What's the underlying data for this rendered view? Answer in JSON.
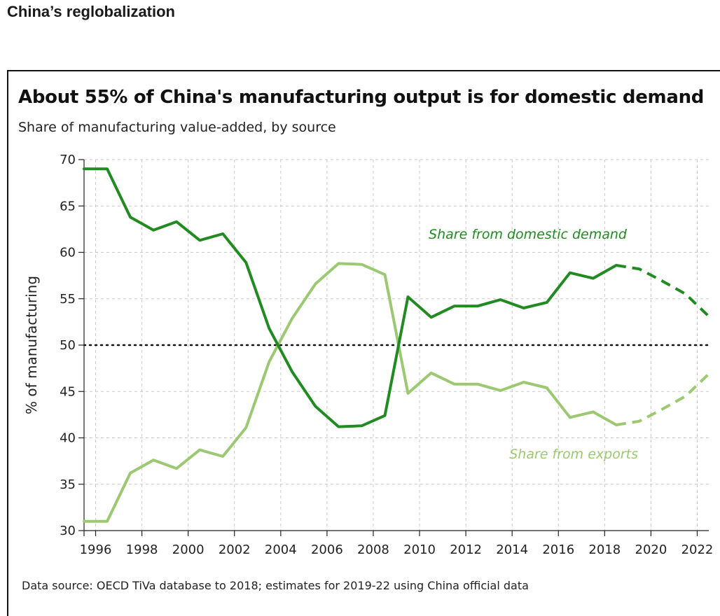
{
  "page": {
    "heading": "China’s reglobalization"
  },
  "chart_data": {
    "type": "line",
    "title": "About 55% of China's manufacturing output is for domestic demand",
    "subtitle": "Share of manufacturing value-added, by source",
    "ylabel": "% of manufacturing",
    "xlabel": "",
    "source": "Data source: OECD TiVa database to 2018; estimates for 2019-22 using China official data",
    "ylim": [
      30,
      70
    ],
    "yticks": [
      30,
      35,
      40,
      45,
      50,
      55,
      60,
      65,
      70
    ],
    "xlim": [
      1995.5,
      2022.5
    ],
    "xticks": [
      1996,
      1998,
      2000,
      2002,
      2004,
      2006,
      2008,
      2010,
      2012,
      2014,
      2016,
      2018,
      2020,
      2022
    ],
    "grid": true,
    "reference_line": {
      "value": 50,
      "style": "dotted"
    },
    "series": [
      {
        "name": "Share from domestic demand",
        "color": "#218a21",
        "actual": {
          "x": [
            1995.5,
            1996.5,
            1997.5,
            1998.5,
            1999.5,
            2000.5,
            2001.5,
            2002.5,
            2003.5,
            2004.5,
            2005.5,
            2006.5,
            2007.5,
            2008.5,
            2009.5,
            2010.5,
            2011.5,
            2012.5,
            2013.5,
            2014.5,
            2015.5,
            2016.5,
            2017.5,
            2018.5
          ],
          "y": [
            69.0,
            69.0,
            63.8,
            62.4,
            63.3,
            61.3,
            62.0,
            58.9,
            51.8,
            47.1,
            43.4,
            41.2,
            41.3,
            42.4,
            55.2,
            53.0,
            54.2,
            54.2,
            54.9,
            54.0,
            54.6,
            57.8,
            57.2,
            58.6
          ]
        },
        "estimate": {
          "x": [
            2018.5,
            2019.5,
            2020.5,
            2021.5,
            2022.5
          ],
          "y": [
            58.6,
            58.2,
            56.9,
            55.5,
            53.1
          ]
        }
      },
      {
        "name": "Share from exports",
        "color": "#9cc872",
        "actual": {
          "x": [
            1995.5,
            1996.5,
            1997.5,
            1998.5,
            1999.5,
            2000.5,
            2001.5,
            2002.5,
            2003.5,
            2004.5,
            2005.5,
            2006.5,
            2007.5,
            2008.5,
            2009.5,
            2010.5,
            2011.5,
            2012.5,
            2013.5,
            2014.5,
            2015.5,
            2016.5,
            2017.5,
            2018.5
          ],
          "y": [
            31.0,
            31.0,
            36.2,
            37.6,
            36.7,
            38.7,
            38.0,
            41.1,
            48.2,
            52.9,
            56.6,
            58.8,
            58.7,
            57.6,
            44.8,
            47.0,
            45.8,
            45.8,
            45.1,
            46.0,
            45.4,
            42.2,
            42.8,
            41.4
          ]
        },
        "estimate": {
          "x": [
            2018.5,
            2019.5,
            2020.5,
            2021.5,
            2022.5
          ],
          "y": [
            41.4,
            41.8,
            43.1,
            44.5,
            46.9
          ]
        }
      }
    ],
    "annotations": [
      {
        "text": "Share from domestic demand",
        "series": 0
      },
      {
        "text": "Share from exports",
        "series": 1
      }
    ]
  }
}
